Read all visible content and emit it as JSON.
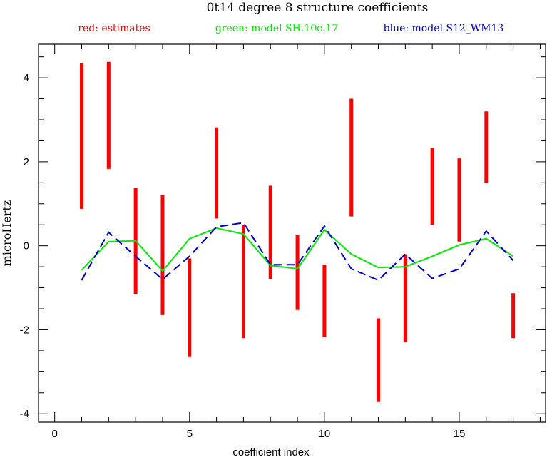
{
  "chart_data": {
    "type": "line",
    "title": "0t14 degree 8 structure coefficients",
    "xlabel": "coefficient index",
    "ylabel": "microHertz",
    "xlim": [
      -0.6,
      18.2
    ],
    "ylim": [
      -4.2,
      4.8
    ],
    "x_ticks": [
      0,
      5,
      10,
      15
    ],
    "y_ticks": [
      -4,
      -2,
      0,
      2,
      4
    ],
    "legend": [
      {
        "label": "red: estimates",
        "color": "#ff0000"
      },
      {
        "label": "green: model SH.10c.17",
        "color": "#00ee00"
      },
      {
        "label": "blue: model S12_WM13",
        "color": "#0000cc"
      }
    ],
    "estimates": {
      "name": "red: estimates",
      "color": "#ff0000",
      "x": [
        1,
        2,
        3,
        4,
        5,
        6,
        7,
        8,
        9,
        10,
        11,
        12,
        13,
        14,
        15,
        16,
        17
      ],
      "low": [
        0.88,
        1.83,
        -1.15,
        -1.65,
        -2.65,
        0.65,
        -2.2,
        -0.8,
        -1.53,
        -2.17,
        0.7,
        -3.72,
        -2.3,
        0.5,
        0.1,
        1.5,
        -2.2
      ],
      "high": [
        4.35,
        4.38,
        1.37,
        1.2,
        -0.3,
        2.82,
        0.5,
        1.43,
        0.25,
        -0.45,
        3.5,
        -1.73,
        -0.2,
        2.32,
        2.08,
        3.2,
        -1.13
      ]
    },
    "series": [
      {
        "name": "green: model SH.10c.17",
        "color": "#00ee00",
        "dash": false,
        "x": [
          1,
          2,
          3,
          4,
          5,
          6,
          7,
          8,
          9,
          10,
          11,
          12,
          13,
          14,
          15,
          16,
          17
        ],
        "values": [
          -0.58,
          0.1,
          0.12,
          -0.6,
          0.17,
          0.42,
          0.28,
          -0.47,
          -0.55,
          0.38,
          -0.2,
          -0.52,
          -0.5,
          -0.25,
          0.02,
          0.17,
          -0.25
        ]
      },
      {
        "name": "blue: model S12_WM13",
        "color": "#0000cc",
        "dash": true,
        "x": [
          1,
          2,
          3,
          4,
          5,
          6,
          7,
          8,
          9,
          10,
          11,
          12,
          13,
          14,
          15,
          16,
          17
        ],
        "values": [
          -0.82,
          0.32,
          -0.25,
          -0.8,
          -0.25,
          0.45,
          0.55,
          -0.45,
          -0.45,
          0.47,
          -0.55,
          -0.82,
          -0.2,
          -0.78,
          -0.55,
          0.35,
          -0.35
        ]
      }
    ]
  }
}
